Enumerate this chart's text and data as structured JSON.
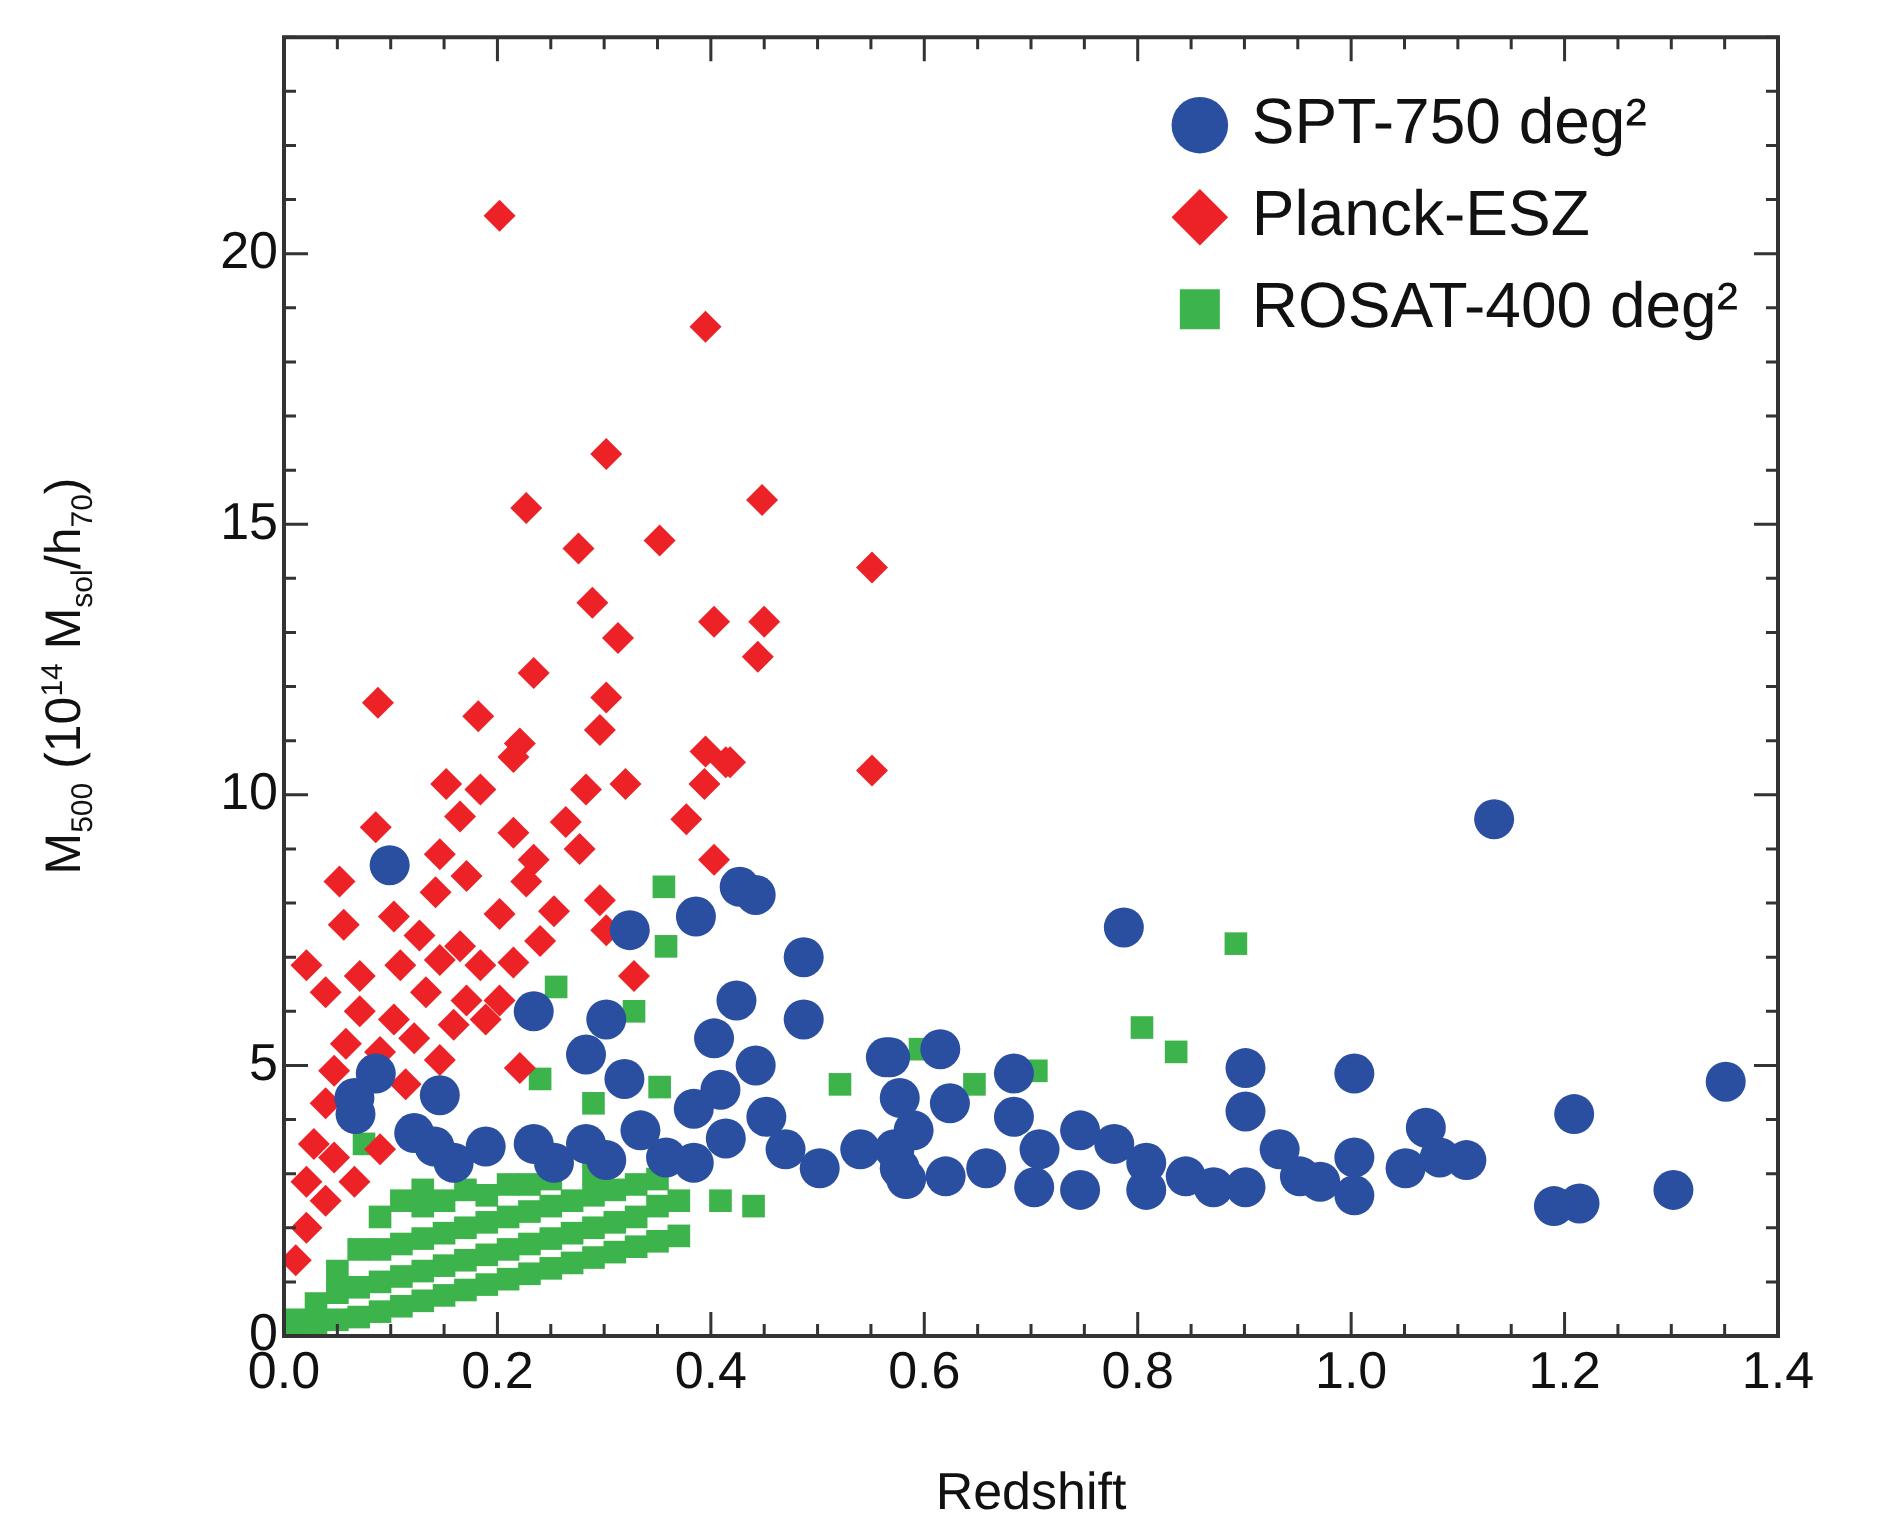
{
  "chart_data": {
    "type": "scatter",
    "xlabel": "Redshift",
    "ylabel": "M$_{500}$ (10$^{14}$ M$_{sol}$/h$_{70}$)",
    "legend": "top right",
    "xlim": [
      0,
      1.4
    ],
    "ylim": [
      0,
      24
    ],
    "xticks": [
      {
        "value": 0,
        "label": "0.0"
      },
      {
        "value": 0.05,
        "label": null
      },
      {
        "value": 0.1,
        "label": null
      },
      {
        "value": 0.15,
        "label": null
      },
      {
        "value": 0.2,
        "label": "0.2"
      },
      {
        "value": 0.25,
        "label": null
      },
      {
        "value": 0.3,
        "label": null
      },
      {
        "value": 0.35,
        "label": null
      },
      {
        "value": 0.4,
        "label": "0.4"
      },
      {
        "value": 0.45,
        "label": null
      },
      {
        "value": 0.5,
        "label": null
      },
      {
        "value": 0.55,
        "label": null
      },
      {
        "value": 0.6,
        "label": "0.6"
      },
      {
        "value": 0.65,
        "label": null
      },
      {
        "value": 0.7,
        "label": null
      },
      {
        "value": 0.75,
        "label": null
      },
      {
        "value": 0.8,
        "label": "0.8"
      },
      {
        "value": 0.85,
        "label": null
      },
      {
        "value": 0.9,
        "label": null
      },
      {
        "value": 0.95,
        "label": null
      },
      {
        "value": 1,
        "label": "1.0"
      },
      {
        "value": 1.05,
        "label": null
      },
      {
        "value": 1.1,
        "label": null
      },
      {
        "value": 1.15,
        "label": null
      },
      {
        "value": 1.2,
        "label": "1.2"
      },
      {
        "value": 1.25,
        "label": null
      },
      {
        "value": 1.3,
        "label": null
      },
      {
        "value": 1.35,
        "label": null
      },
      {
        "value": 1.4,
        "label": "1.4"
      }
    ],
    "yticks": [
      0,
      {
        "value": 1,
        "label": null
      },
      {
        "value": 2,
        "label": null
      },
      {
        "value": 3,
        "label": null
      },
      {
        "value": 4,
        "label": null
      },
      5,
      {
        "value": 6,
        "label": null
      },
      {
        "value": 7,
        "label": null
      },
      {
        "value": 8,
        "label": null
      },
      {
        "value": 9,
        "label": null
      },
      10,
      {
        "value": 11,
        "label": null
      },
      {
        "value": 12,
        "label": null
      },
      {
        "value": 13,
        "label": null
      },
      {
        "value": 14,
        "label": null
      },
      15,
      {
        "value": 16,
        "label": null
      },
      {
        "value": 17,
        "label": null
      },
      {
        "value": 18,
        "label": null
      },
      {
        "value": 19,
        "label": null
      },
      20,
      {
        "value": 21,
        "label": null
      },
      {
        "value": 22,
        "label": null
      },
      {
        "value": 23,
        "label": null
      },
      {
        "value": 24,
        "label": null
      }
    ],
    "series": [
      {
        "name": "SPT-750 deg²",
        "color": "#2a4ea0",
        "marker": "circle",
        "x": [
          0.099,
          0.427,
          0.442,
          0.386,
          0.324,
          0.487,
          0.424,
          0.234,
          0.302,
          0.487,
          0.403,
          0.283,
          0.442,
          0.319,
          0.086,
          0.066,
          0.146,
          0.067,
          0.564,
          0.409,
          0.384,
          0.122,
          0.141,
          0.159,
          0.189,
          0.234,
          0.253,
          0.283,
          0.302,
          0.334,
          0.358,
          0.384,
          0.414,
          0.452,
          0.47,
          0.502,
          0.54,
          0.577,
          0.59,
          1.134,
          0.787,
          0.901,
          1.003,
          1.351,
          0.901,
          1.209,
          1.07,
          0.684,
          0.684,
          0.615,
          0.568,
          0.624,
          0.577,
          1.302,
          1.19,
          1.214,
          1.108,
          1.083,
          1.051,
          1.003,
          1.003,
          0.971,
          0.933,
          0.952,
          0.901,
          0.871,
          0.845,
          0.808,
          0.808,
          0.778,
          0.746,
          0.746,
          0.703,
          0.708,
          0.658,
          0.62,
          0.583,
          0.572
        ],
        "values": [
          8.7,
          8.3,
          8.15,
          7.75,
          7.5,
          7.0,
          6.2,
          6.0,
          5.85,
          5.85,
          5.5,
          5.2,
          5.0,
          4.75,
          4.85,
          4.4,
          4.45,
          4.1,
          5.15,
          4.55,
          4.2,
          3.75,
          3.5,
          3.2,
          3.5,
          3.55,
          3.2,
          3.55,
          3.25,
          3.8,
          3.3,
          3.2,
          3.65,
          4.05,
          3.45,
          3.1,
          3.45,
          3.1,
          3.8,
          9.55,
          7.55,
          4.95,
          4.85,
          4.7,
          4.15,
          4.1,
          3.85,
          4.85,
          4.05,
          5.3,
          5.15,
          4.3,
          4.4,
          2.7,
          2.4,
          2.45,
          3.25,
          3.3,
          3.1,
          3.3,
          2.6,
          2.85,
          3.45,
          2.95,
          2.75,
          2.75,
          2.95,
          2.7,
          3.2,
          3.55,
          3.8,
          2.7,
          2.75,
          3.45,
          3.1,
          2.95,
          2.9,
          3.45
        ]
      },
      {
        "name": "Planck-ESZ",
        "color": "#ec2227",
        "marker": "diamond",
        "x": [
          0.202,
          0.395,
          0.302,
          0.227,
          0.448,
          0.276,
          0.352,
          0.551,
          0.289,
          0.313,
          0.403,
          0.45,
          0.444,
          0.088,
          0.234,
          0.182,
          0.302,
          0.296,
          0.221,
          0.395,
          0.418,
          0.551,
          0.215,
          0.152,
          0.184,
          0.283,
          0.32,
          0.394,
          0.414,
          0.377,
          0.086,
          0.165,
          0.264,
          0.215,
          0.146,
          0.234,
          0.277,
          0.403,
          0.052,
          0.171,
          0.227,
          0.296,
          0.103,
          0.056,
          0.142,
          0.202,
          0.253,
          0.302,
          0.24,
          0.328,
          0.127,
          0.165,
          0.021,
          0.071,
          0.039,
          0.109,
          0.146,
          0.184,
          0.215,
          0.133,
          0.171,
          0.202,
          0.071,
          0.103,
          0.159,
          0.189,
          0.058,
          0.09,
          0.122,
          0.146,
          0.221,
          0.047,
          0.114,
          0.039,
          0.028,
          0.047,
          0.021,
          0.066,
          0.039,
          0.021,
          0.011,
          0.09
        ],
        "values": [
          20.7,
          18.65,
          16.3,
          15.3,
          15.45,
          14.55,
          14.7,
          14.2,
          13.55,
          12.9,
          13.2,
          13.2,
          12.55,
          11.7,
          12.25,
          11.45,
          11.8,
          11.2,
          10.95,
          10.8,
          10.6,
          10.45,
          10.7,
          10.2,
          10.1,
          10.1,
          10.2,
          10.2,
          10.6,
          9.55,
          9.4,
          9.6,
          9.5,
          9.3,
          8.9,
          8.8,
          9.0,
          8.8,
          8.4,
          8.5,
          8.4,
          8.05,
          7.75,
          7.6,
          8.2,
          7.8,
          7.85,
          7.5,
          7.3,
          6.65,
          7.4,
          7.2,
          6.85,
          6.65,
          6.35,
          6.85,
          6.95,
          6.85,
          6.9,
          6.35,
          6.2,
          6.2,
          6.0,
          5.85,
          5.75,
          5.85,
          5.4,
          5.25,
          5.5,
          5.1,
          4.95,
          4.9,
          4.65,
          4.3,
          3.55,
          3.3,
          2.85,
          2.85,
          2.5,
          2.0,
          1.4,
          3.45
        ]
      },
      {
        "name": "ROSAT-400 deg²",
        "color": "#3cb44b",
        "marker": "square",
        "x": [
          0.356,
          0.358,
          0.255,
          0.328,
          0.24,
          0.352,
          0.521,
          0.29,
          0.075,
          0.409,
          0.892,
          0.804,
          0.836,
          0.705,
          0.647,
          0.596,
          0.01,
          0.01,
          0.03,
          0.03,
          0.05,
          0.05,
          0.05,
          0.07,
          0.07,
          0.07,
          0.09,
          0.09,
          0.09,
          0.09,
          0.11,
          0.11,
          0.11,
          0.11,
          0.13,
          0.13,
          0.13,
          0.13,
          0.13,
          0.15,
          0.15,
          0.15,
          0.15,
          0.17,
          0.17,
          0.17,
          0.17,
          0.19,
          0.19,
          0.19,
          0.19,
          0.21,
          0.21,
          0.21,
          0.21,
          0.23,
          0.23,
          0.23,
          0.23,
          0.25,
          0.25,
          0.25,
          0.25,
          0.27,
          0.27,
          0.27,
          0.29,
          0.29,
          0.29,
          0.29,
          0.31,
          0.31,
          0.31,
          0.33,
          0.33,
          0.33,
          0.35,
          0.35,
          0.35,
          0.37,
          0.37,
          0.44
        ],
        "values": [
          8.3,
          7.2,
          6.45,
          6.0,
          4.75,
          4.6,
          4.65,
          4.3,
          3.55,
          2.5,
          7.25,
          5.7,
          5.25,
          4.9,
          4.65,
          5.3,
          0.1,
          0.3,
          0.2,
          0.6,
          0.3,
          0.8,
          1.2,
          0.35,
          0.9,
          1.6,
          0.45,
          1.0,
          1.6,
          2.2,
          0.55,
          1.1,
          1.7,
          2.5,
          0.65,
          1.2,
          1.8,
          2.4,
          2.7,
          0.75,
          1.3,
          1.9,
          2.5,
          0.85,
          1.4,
          2.0,
          2.7,
          0.95,
          1.5,
          2.1,
          2.6,
          1.05,
          1.6,
          2.2,
          2.8,
          1.15,
          1.7,
          2.3,
          2.8,
          1.25,
          1.8,
          2.4,
          2.9,
          1.35,
          1.9,
          2.5,
          1.45,
          2.0,
          2.6,
          3.0,
          1.55,
          2.1,
          2.7,
          1.65,
          2.2,
          2.8,
          1.75,
          2.4,
          2.9,
          1.85,
          2.5,
          2.4
        ]
      }
    ]
  }
}
